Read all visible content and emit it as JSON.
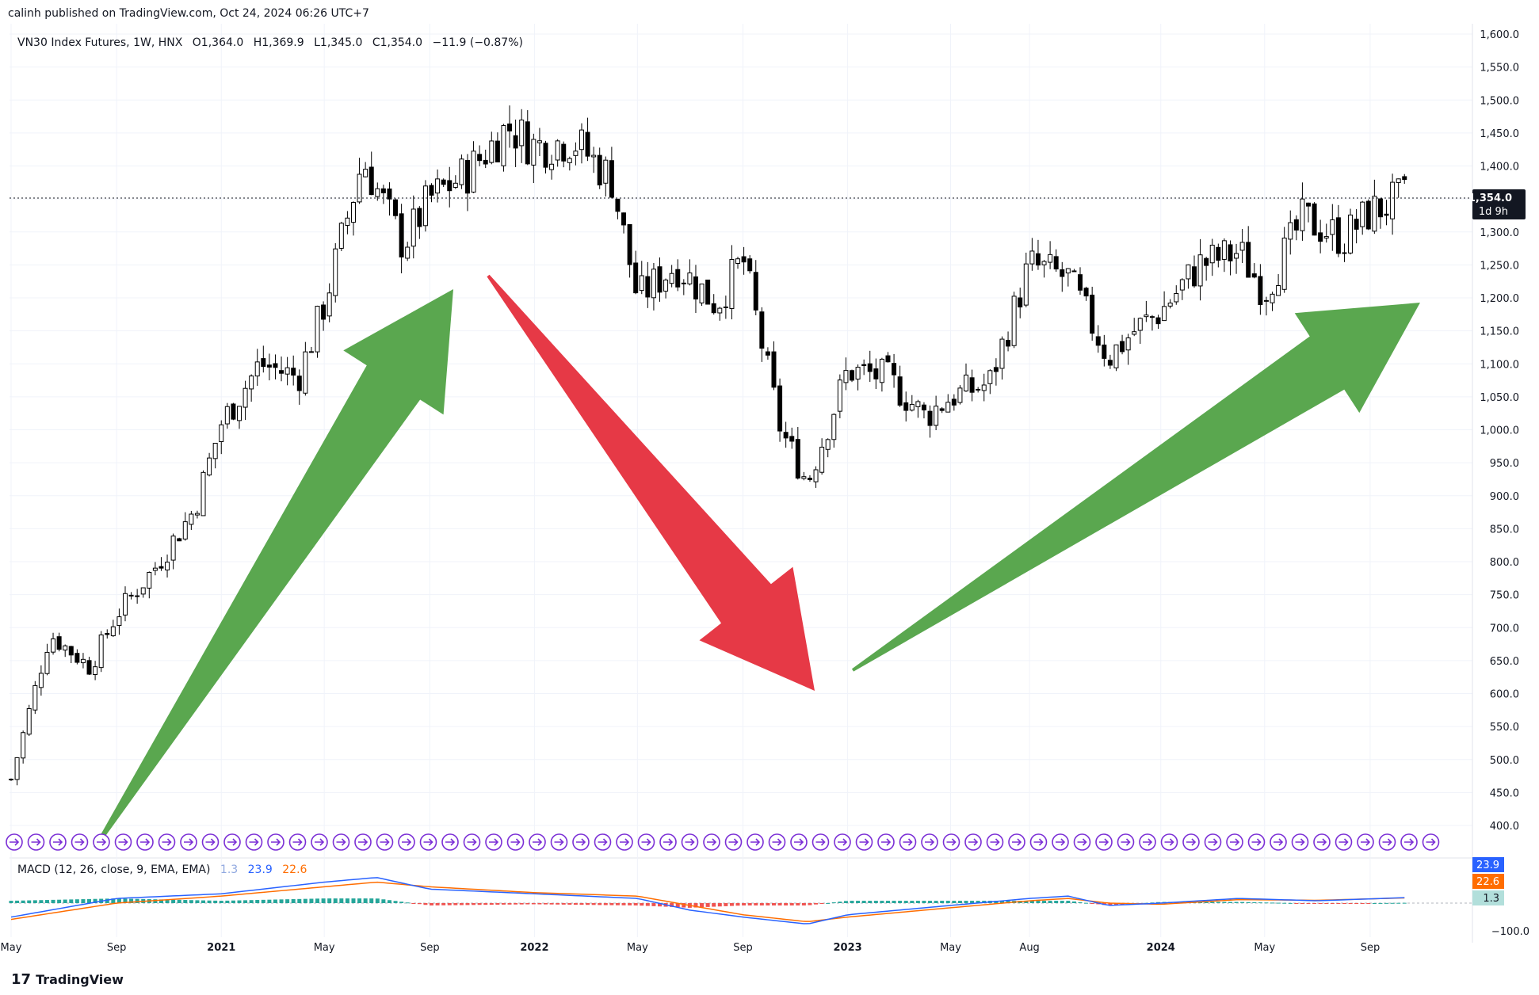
{
  "header": {
    "published": "calinh published on TradingView.com, Oct 24, 2024 06:26 UTC+7"
  },
  "legend": {
    "symbol": "VN30 Index Futures, 1W, HNX",
    "open": "O1,364.0",
    "high": "H1,369.9",
    "low": "L1,345.0",
    "close": "C1,354.0",
    "change": "−11.9 (−0.87%)"
  },
  "macd_legend": {
    "label": "MACD (12, 26, close, 9, EMA, EMA)",
    "hist": "1.3",
    "macd": "23.9",
    "signal": "22.6"
  },
  "price_axis": {
    "ticks": [
      "1,600.0",
      "1,550.0",
      "1,500.0",
      "1,450.0",
      "1,400.0",
      "1,350.0",
      "1,300.0",
      "1,250.0",
      "1,200.0",
      "1,150.0",
      "1,100.0",
      "1,050.0",
      "1,000.0",
      "950.0",
      "900.0",
      "850.0",
      "800.0",
      "750.0",
      "700.0",
      "650.0",
      "600.0",
      "550.0",
      "500.0",
      "450.0",
      "400.0"
    ],
    "current_price": "1,354.0",
    "countdown": "1d 9h"
  },
  "macd_axis": {
    "macd_badge": "23.9",
    "signal_badge": "22.6",
    "hist_badge": "1.3",
    "low_tick": "−100.0"
  },
  "time_axis": [
    "May",
    "Sep",
    "2021",
    "May",
    "Sep",
    "2022",
    "May",
    "Sep",
    "2023",
    "May",
    "Aug",
    "2024",
    "May",
    "Sep"
  ],
  "brand": {
    "name": "TradingView",
    "logo_text": "17"
  },
  "colors": {
    "up_candle": "#ffffff",
    "down_candle": "#000000",
    "green_arrow": "#5aa74f",
    "red_arrow": "#e63946",
    "macd_line": "#2962ff",
    "signal_line": "#ff6d00",
    "hist_up": "#26a69a",
    "hist_down": "#ef5350",
    "event_icon": "#7b2fd6"
  },
  "chart_data": [
    {
      "type": "candlestick",
      "title": "VN30 Index Futures, 1W, HNX",
      "ylim": [
        370,
        1610
      ],
      "x": [
        "2020-05-01",
        "2020-06-15",
        "2020-08-01",
        "2020-09-01",
        "2020-10-15",
        "2020-12-01",
        "2021-01-01",
        "2021-02-15",
        "2021-04-01",
        "2021-05-01",
        "2021-06-15",
        "2021-08-01",
        "2021-09-01",
        "2021-10-15",
        "2021-12-01",
        "2022-01-01",
        "2022-02-15",
        "2022-04-01",
        "2022-05-01",
        "2022-06-15",
        "2022-08-01",
        "2022-09-01",
        "2022-10-15",
        "2022-11-15",
        "2023-01-01",
        "2023-02-15",
        "2023-04-01",
        "2023-05-01",
        "2023-06-15",
        "2023-08-01",
        "2023-09-15",
        "2023-11-01",
        "2023-12-01",
        "2024-01-01",
        "2024-02-15",
        "2024-04-01",
        "2024-05-01",
        "2024-06-15",
        "2024-08-01",
        "2024-09-01",
        "2024-10-15"
      ],
      "close": [
        470,
        690,
        640,
        720,
        790,
        880,
        1010,
        1100,
        1080,
        1190,
        1410,
        1280,
        1350,
        1390,
        1460,
        1430,
        1440,
        1380,
        1200,
        1250,
        1190,
        1260,
        1000,
        920,
        1090,
        1080,
        1020,
        1050,
        1070,
        1250,
        1230,
        1110,
        1150,
        1180,
        1250,
        1270,
        1210,
        1320,
        1290,
        1330,
        1354
      ],
      "arrows": [
        "up",
        "down",
        "up"
      ]
    },
    {
      "type": "line",
      "title": "MACD (12, 26, close, 9, EMA, EMA)",
      "ylim": [
        -100,
        170
      ],
      "x": [
        "2020-05-01",
        "2020-09-01",
        "2021-01-01",
        "2021-05-01",
        "2021-07-01",
        "2021-09-01",
        "2022-01-01",
        "2022-05-01",
        "2022-07-01",
        "2022-09-01",
        "2022-11-15",
        "2023-01-01",
        "2023-05-01",
        "2023-08-01",
        "2023-09-15",
        "2023-11-01",
        "2024-01-01",
        "2024-04-01",
        "2024-07-01",
        "2024-10-15"
      ],
      "series": [
        {
          "name": "MACD",
          "values": [
            -60,
            20,
            40,
            90,
            110,
            60,
            40,
            20,
            -30,
            -60,
            -90,
            -50,
            -10,
            20,
            30,
            -10,
            0,
            20,
            10,
            23.9
          ]
        },
        {
          "name": "Signal",
          "values": [
            -70,
            0,
            30,
            70,
            90,
            70,
            45,
            30,
            -10,
            -50,
            -80,
            -60,
            -20,
            10,
            20,
            0,
            -5,
            15,
            12,
            22.6
          ]
        },
        {
          "name": "Histogram",
          "values": [
            10,
            20,
            10,
            20,
            20,
            -10,
            -5,
            -10,
            -20,
            -10,
            -10,
            10,
            10,
            10,
            10,
            -10,
            5,
            5,
            -2,
            1.3
          ]
        }
      ]
    }
  ]
}
